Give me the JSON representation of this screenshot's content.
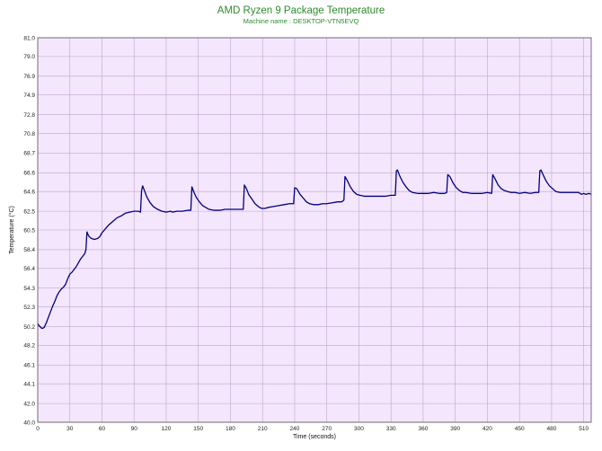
{
  "chart_data": {
    "type": "line",
    "title": "AMD Ryzen 9 Package Temperature",
    "subtitle": "Machine name : DESKTOP-VTN5EVQ",
    "xlabel": "Time (seconds)",
    "ylabel": "Temperature (°C)",
    "xlim": [
      0,
      517
    ],
    "ylim": [
      40.0,
      81.0
    ],
    "x_ticks": [
      0,
      30,
      60,
      90,
      120,
      150,
      180,
      210,
      240,
      270,
      300,
      330,
      360,
      390,
      420,
      450,
      480,
      510
    ],
    "y_ticks": [
      "40.0",
      "42.0",
      "44.1",
      "46.1",
      "48.2",
      "50.2",
      "52.3",
      "54.3",
      "56.4",
      "58.4",
      "60.5",
      "62.5",
      "64.6",
      "66.6",
      "68.7",
      "70.8",
      "72.8",
      "74.9",
      "76.9",
      "79.0",
      "81.0"
    ],
    "grid": true,
    "colors": {
      "line": "#00007f",
      "plot_background": "#f4e6fc",
      "grid": "#c0a6cc",
      "title": "#2e8b2e"
    },
    "series": [
      {
        "values": [
          [
            0,
            50.5
          ],
          [
            2,
            50.2
          ],
          [
            4,
            50.0
          ],
          [
            6,
            50.1
          ],
          [
            8,
            50.6
          ],
          [
            10,
            51.2
          ],
          [
            12,
            51.8
          ],
          [
            14,
            52.4
          ],
          [
            16,
            52.9
          ],
          [
            18,
            53.5
          ],
          [
            20,
            53.9
          ],
          [
            22,
            54.2
          ],
          [
            24,
            54.4
          ],
          [
            26,
            54.7
          ],
          [
            28,
            55.3
          ],
          [
            30,
            55.8
          ],
          [
            32,
            56.0
          ],
          [
            34,
            56.3
          ],
          [
            36,
            56.6
          ],
          [
            38,
            57.0
          ],
          [
            40,
            57.4
          ],
          [
            42,
            57.7
          ],
          [
            44,
            58.0
          ],
          [
            45,
            58.4
          ],
          [
            46,
            60.3
          ],
          [
            47,
            60.0
          ],
          [
            48,
            59.8
          ],
          [
            50,
            59.6
          ],
          [
            53,
            59.5
          ],
          [
            56,
            59.6
          ],
          [
            58,
            59.8
          ],
          [
            60,
            60.2
          ],
          [
            63,
            60.6
          ],
          [
            66,
            61.0
          ],
          [
            70,
            61.4
          ],
          [
            74,
            61.8
          ],
          [
            78,
            62.0
          ],
          [
            82,
            62.3
          ],
          [
            86,
            62.4
          ],
          [
            90,
            62.5
          ],
          [
            94,
            62.5
          ],
          [
            96,
            62.4
          ],
          [
            97,
            64.7
          ],
          [
            98,
            65.2
          ],
          [
            100,
            64.6
          ],
          [
            102,
            64.0
          ],
          [
            105,
            63.4
          ],
          [
            108,
            63.0
          ],
          [
            112,
            62.7
          ],
          [
            116,
            62.5
          ],
          [
            120,
            62.4
          ],
          [
            124,
            62.5
          ],
          [
            126,
            62.4
          ],
          [
            130,
            62.5
          ],
          [
            135,
            62.5
          ],
          [
            140,
            62.6
          ],
          [
            143,
            62.6
          ],
          [
            144,
            65.1
          ],
          [
            146,
            64.5
          ],
          [
            148,
            64.0
          ],
          [
            151,
            63.5
          ],
          [
            154,
            63.1
          ],
          [
            157,
            62.9
          ],
          [
            160,
            62.7
          ],
          [
            165,
            62.6
          ],
          [
            170,
            62.6
          ],
          [
            175,
            62.7
          ],
          [
            180,
            62.7
          ],
          [
            185,
            62.7
          ],
          [
            192,
            62.7
          ],
          [
            193,
            65.3
          ],
          [
            195,
            64.9
          ],
          [
            197,
            64.3
          ],
          [
            200,
            63.8
          ],
          [
            203,
            63.3
          ],
          [
            206,
            63.0
          ],
          [
            209,
            62.8
          ],
          [
            212,
            62.8
          ],
          [
            215,
            62.9
          ],
          [
            220,
            63.0
          ],
          [
            225,
            63.1
          ],
          [
            230,
            63.2
          ],
          [
            235,
            63.3
          ],
          [
            239,
            63.3
          ],
          [
            240,
            65.0
          ],
          [
            242,
            64.9
          ],
          [
            245,
            64.3
          ],
          [
            248,
            63.9
          ],
          [
            251,
            63.5
          ],
          [
            254,
            63.3
          ],
          [
            258,
            63.2
          ],
          [
            262,
            63.2
          ],
          [
            266,
            63.3
          ],
          [
            270,
            63.3
          ],
          [
            275,
            63.4
          ],
          [
            280,
            63.5
          ],
          [
            284,
            63.5
          ],
          [
            286,
            63.7
          ],
          [
            287,
            66.2
          ],
          [
            289,
            65.8
          ],
          [
            292,
            65.1
          ],
          [
            295,
            64.6
          ],
          [
            298,
            64.3
          ],
          [
            301,
            64.2
          ],
          [
            305,
            64.1
          ],
          [
            310,
            64.1
          ],
          [
            315,
            64.1
          ],
          [
            320,
            64.1
          ],
          [
            325,
            64.1
          ],
          [
            330,
            64.2
          ],
          [
            334,
            64.2
          ],
          [
            335,
            66.8
          ],
          [
            336,
            66.9
          ],
          [
            338,
            66.3
          ],
          [
            341,
            65.6
          ],
          [
            344,
            65.1
          ],
          [
            347,
            64.7
          ],
          [
            350,
            64.5
          ],
          [
            355,
            64.4
          ],
          [
            360,
            64.4
          ],
          [
            365,
            64.4
          ],
          [
            370,
            64.5
          ],
          [
            375,
            64.4
          ],
          [
            380,
            64.4
          ],
          [
            382,
            64.5
          ],
          [
            383,
            66.4
          ],
          [
            385,
            66.2
          ],
          [
            388,
            65.5
          ],
          [
            391,
            65.0
          ],
          [
            394,
            64.7
          ],
          [
            397,
            64.5
          ],
          [
            400,
            64.5
          ],
          [
            405,
            64.4
          ],
          [
            410,
            64.4
          ],
          [
            415,
            64.4
          ],
          [
            420,
            64.5
          ],
          [
            424,
            64.4
          ],
          [
            425,
            66.4
          ],
          [
            427,
            66.0
          ],
          [
            430,
            65.3
          ],
          [
            433,
            64.9
          ],
          [
            436,
            64.7
          ],
          [
            439,
            64.6
          ],
          [
            442,
            64.5
          ],
          [
            446,
            64.5
          ],
          [
            450,
            64.4
          ],
          [
            455,
            64.5
          ],
          [
            460,
            64.4
          ],
          [
            465,
            64.5
          ],
          [
            468,
            64.5
          ],
          [
            469,
            66.8
          ],
          [
            470,
            66.9
          ],
          [
            472,
            66.4
          ],
          [
            475,
            65.7
          ],
          [
            478,
            65.2
          ],
          [
            481,
            64.9
          ],
          [
            484,
            64.6
          ],
          [
            488,
            64.5
          ],
          [
            492,
            64.5
          ],
          [
            496,
            64.5
          ],
          [
            500,
            64.5
          ],
          [
            505,
            64.5
          ],
          [
            508,
            64.3
          ],
          [
            510,
            64.4
          ],
          [
            512,
            64.3
          ],
          [
            515,
            64.4
          ],
          [
            517,
            64.3
          ]
        ]
      }
    ]
  }
}
